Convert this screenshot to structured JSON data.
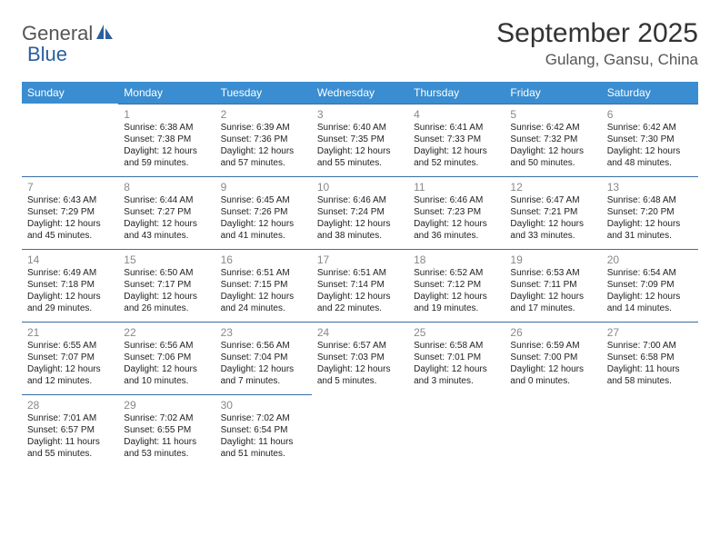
{
  "logo": {
    "text_left": "General",
    "text_right": "Blue",
    "icon_color": "#2b5f9e"
  },
  "title": "September 2025",
  "location": "Gulang, Gansu, China",
  "header_bg": "#3a8dd0",
  "row_border": "#3a6ea5",
  "weekdays": [
    "Sunday",
    "Monday",
    "Tuesday",
    "Wednesday",
    "Thursday",
    "Friday",
    "Saturday"
  ],
  "weeks": [
    [
      null,
      {
        "day": "1",
        "sunrise": "Sunrise: 6:38 AM",
        "sunset": "Sunset: 7:38 PM",
        "daylight": "Daylight: 12 hours and 59 minutes."
      },
      {
        "day": "2",
        "sunrise": "Sunrise: 6:39 AM",
        "sunset": "Sunset: 7:36 PM",
        "daylight": "Daylight: 12 hours and 57 minutes."
      },
      {
        "day": "3",
        "sunrise": "Sunrise: 6:40 AM",
        "sunset": "Sunset: 7:35 PM",
        "daylight": "Daylight: 12 hours and 55 minutes."
      },
      {
        "day": "4",
        "sunrise": "Sunrise: 6:41 AM",
        "sunset": "Sunset: 7:33 PM",
        "daylight": "Daylight: 12 hours and 52 minutes."
      },
      {
        "day": "5",
        "sunrise": "Sunrise: 6:42 AM",
        "sunset": "Sunset: 7:32 PM",
        "daylight": "Daylight: 12 hours and 50 minutes."
      },
      {
        "day": "6",
        "sunrise": "Sunrise: 6:42 AM",
        "sunset": "Sunset: 7:30 PM",
        "daylight": "Daylight: 12 hours and 48 minutes."
      }
    ],
    [
      {
        "day": "7",
        "sunrise": "Sunrise: 6:43 AM",
        "sunset": "Sunset: 7:29 PM",
        "daylight": "Daylight: 12 hours and 45 minutes."
      },
      {
        "day": "8",
        "sunrise": "Sunrise: 6:44 AM",
        "sunset": "Sunset: 7:27 PM",
        "daylight": "Daylight: 12 hours and 43 minutes."
      },
      {
        "day": "9",
        "sunrise": "Sunrise: 6:45 AM",
        "sunset": "Sunset: 7:26 PM",
        "daylight": "Daylight: 12 hours and 41 minutes."
      },
      {
        "day": "10",
        "sunrise": "Sunrise: 6:46 AM",
        "sunset": "Sunset: 7:24 PM",
        "daylight": "Daylight: 12 hours and 38 minutes."
      },
      {
        "day": "11",
        "sunrise": "Sunrise: 6:46 AM",
        "sunset": "Sunset: 7:23 PM",
        "daylight": "Daylight: 12 hours and 36 minutes."
      },
      {
        "day": "12",
        "sunrise": "Sunrise: 6:47 AM",
        "sunset": "Sunset: 7:21 PM",
        "daylight": "Daylight: 12 hours and 33 minutes."
      },
      {
        "day": "13",
        "sunrise": "Sunrise: 6:48 AM",
        "sunset": "Sunset: 7:20 PM",
        "daylight": "Daylight: 12 hours and 31 minutes."
      }
    ],
    [
      {
        "day": "14",
        "sunrise": "Sunrise: 6:49 AM",
        "sunset": "Sunset: 7:18 PM",
        "daylight": "Daylight: 12 hours and 29 minutes."
      },
      {
        "day": "15",
        "sunrise": "Sunrise: 6:50 AM",
        "sunset": "Sunset: 7:17 PM",
        "daylight": "Daylight: 12 hours and 26 minutes."
      },
      {
        "day": "16",
        "sunrise": "Sunrise: 6:51 AM",
        "sunset": "Sunset: 7:15 PM",
        "daylight": "Daylight: 12 hours and 24 minutes."
      },
      {
        "day": "17",
        "sunrise": "Sunrise: 6:51 AM",
        "sunset": "Sunset: 7:14 PM",
        "daylight": "Daylight: 12 hours and 22 minutes."
      },
      {
        "day": "18",
        "sunrise": "Sunrise: 6:52 AM",
        "sunset": "Sunset: 7:12 PM",
        "daylight": "Daylight: 12 hours and 19 minutes."
      },
      {
        "day": "19",
        "sunrise": "Sunrise: 6:53 AM",
        "sunset": "Sunset: 7:11 PM",
        "daylight": "Daylight: 12 hours and 17 minutes."
      },
      {
        "day": "20",
        "sunrise": "Sunrise: 6:54 AM",
        "sunset": "Sunset: 7:09 PM",
        "daylight": "Daylight: 12 hours and 14 minutes."
      }
    ],
    [
      {
        "day": "21",
        "sunrise": "Sunrise: 6:55 AM",
        "sunset": "Sunset: 7:07 PM",
        "daylight": "Daylight: 12 hours and 12 minutes."
      },
      {
        "day": "22",
        "sunrise": "Sunrise: 6:56 AM",
        "sunset": "Sunset: 7:06 PM",
        "daylight": "Daylight: 12 hours and 10 minutes."
      },
      {
        "day": "23",
        "sunrise": "Sunrise: 6:56 AM",
        "sunset": "Sunset: 7:04 PM",
        "daylight": "Daylight: 12 hours and 7 minutes."
      },
      {
        "day": "24",
        "sunrise": "Sunrise: 6:57 AM",
        "sunset": "Sunset: 7:03 PM",
        "daylight": "Daylight: 12 hours and 5 minutes."
      },
      {
        "day": "25",
        "sunrise": "Sunrise: 6:58 AM",
        "sunset": "Sunset: 7:01 PM",
        "daylight": "Daylight: 12 hours and 3 minutes."
      },
      {
        "day": "26",
        "sunrise": "Sunrise: 6:59 AM",
        "sunset": "Sunset: 7:00 PM",
        "daylight": "Daylight: 12 hours and 0 minutes."
      },
      {
        "day": "27",
        "sunrise": "Sunrise: 7:00 AM",
        "sunset": "Sunset: 6:58 PM",
        "daylight": "Daylight: 11 hours and 58 minutes."
      }
    ],
    [
      {
        "day": "28",
        "sunrise": "Sunrise: 7:01 AM",
        "sunset": "Sunset: 6:57 PM",
        "daylight": "Daylight: 11 hours and 55 minutes."
      },
      {
        "day": "29",
        "sunrise": "Sunrise: 7:02 AM",
        "sunset": "Sunset: 6:55 PM",
        "daylight": "Daylight: 11 hours and 53 minutes."
      },
      {
        "day": "30",
        "sunrise": "Sunrise: 7:02 AM",
        "sunset": "Sunset: 6:54 PM",
        "daylight": "Daylight: 11 hours and 51 minutes."
      },
      null,
      null,
      null,
      null
    ]
  ]
}
